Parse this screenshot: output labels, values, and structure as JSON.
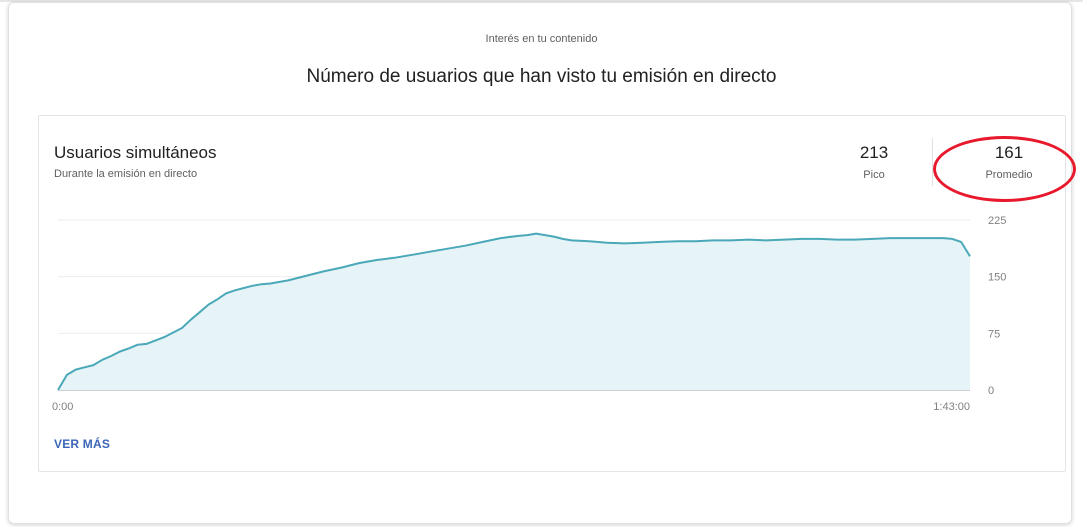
{
  "section_title": "Interés en tu contenido",
  "main_title": "Número de usuarios que han visto tu emisión en directo",
  "card": {
    "title": "Usuarios simultáneos",
    "subtitle": "Durante la emisión en directo",
    "peak": {
      "value": "213",
      "label": "Pico"
    },
    "average": {
      "value": "161",
      "label": "Promedio"
    },
    "link_label": "VER MÁS"
  },
  "colors": {
    "line": "#4aa8b8",
    "fill": "#e6f4f8",
    "highlight": "#e8192c",
    "link": "#3b66b7"
  },
  "chart_data": {
    "type": "area",
    "title": "",
    "xlabel": "",
    "ylabel": "",
    "x_tick_labels": [
      "0:00",
      "1:43:00"
    ],
    "y_ticks": [
      0,
      75,
      150,
      225
    ],
    "ylim": [
      0,
      225
    ],
    "x_range_minutes": [
      0,
      103
    ],
    "grid": true,
    "y_axis_side": "right",
    "series": [
      {
        "x": [
          0,
          1,
          2,
          3,
          4,
          5,
          6,
          7,
          8,
          9,
          10,
          12,
          14,
          15,
          16,
          17,
          18,
          19,
          20,
          21,
          22,
          23,
          24,
          26,
          28,
          30,
          32,
          34,
          36,
          38,
          40,
          42,
          44,
          46,
          48,
          50,
          52,
          53,
          54,
          55,
          56,
          57,
          58,
          60,
          62,
          64,
          66,
          68,
          70,
          72,
          74,
          76,
          78,
          80,
          82,
          84,
          86,
          88,
          90,
          92,
          94,
          96,
          98,
          100,
          101,
          102,
          103
        ],
        "y": [
          0,
          20,
          27,
          30,
          33,
          40,
          45,
          51,
          55,
          60,
          61,
          70,
          82,
          93,
          103,
          113,
          120,
          128,
          132,
          135,
          138,
          140,
          141,
          145,
          151,
          157,
          162,
          168,
          172,
          175,
          179,
          183,
          187,
          191,
          196,
          201,
          204,
          205,
          207,
          205,
          203,
          200,
          198,
          197,
          195,
          194,
          195,
          196,
          197,
          197,
          198,
          198,
          199,
          198,
          199,
          200,
          200,
          199,
          199,
          200,
          201,
          201,
          201,
          201,
          200,
          196,
          177
        ]
      }
    ]
  }
}
